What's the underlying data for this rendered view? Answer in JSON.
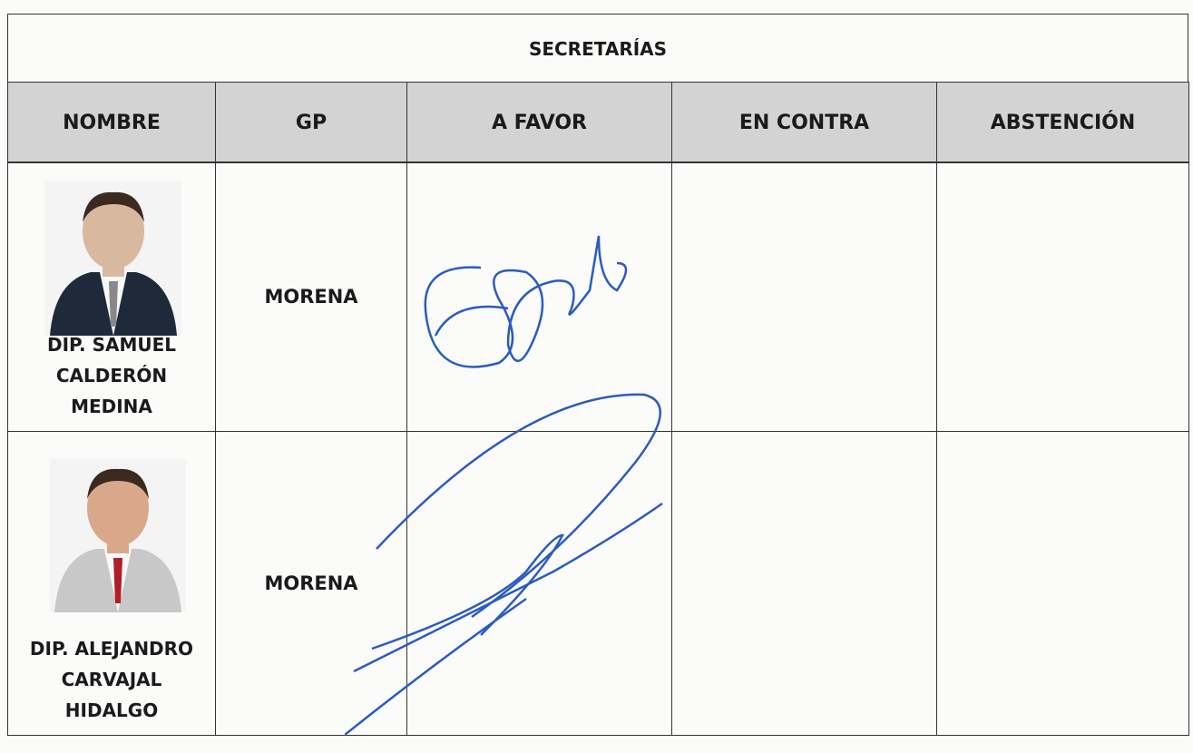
{
  "table": {
    "title": "SECRETARÍAS",
    "headers": [
      "NOMBRE",
      "GP",
      "A FAVOR",
      "EN CONTRA",
      "ABSTENCIÓN"
    ],
    "rows": [
      {
        "name_lines": [
          "DIP. SAMUEL",
          "CALDERÓN",
          "MEDINA"
        ],
        "gp": "MORENA"
      },
      {
        "name_lines": [
          "DIP. ALEJANDRO",
          "CARVAJAL",
          "HIDALGO"
        ],
        "gp": "MORENA"
      }
    ]
  }
}
